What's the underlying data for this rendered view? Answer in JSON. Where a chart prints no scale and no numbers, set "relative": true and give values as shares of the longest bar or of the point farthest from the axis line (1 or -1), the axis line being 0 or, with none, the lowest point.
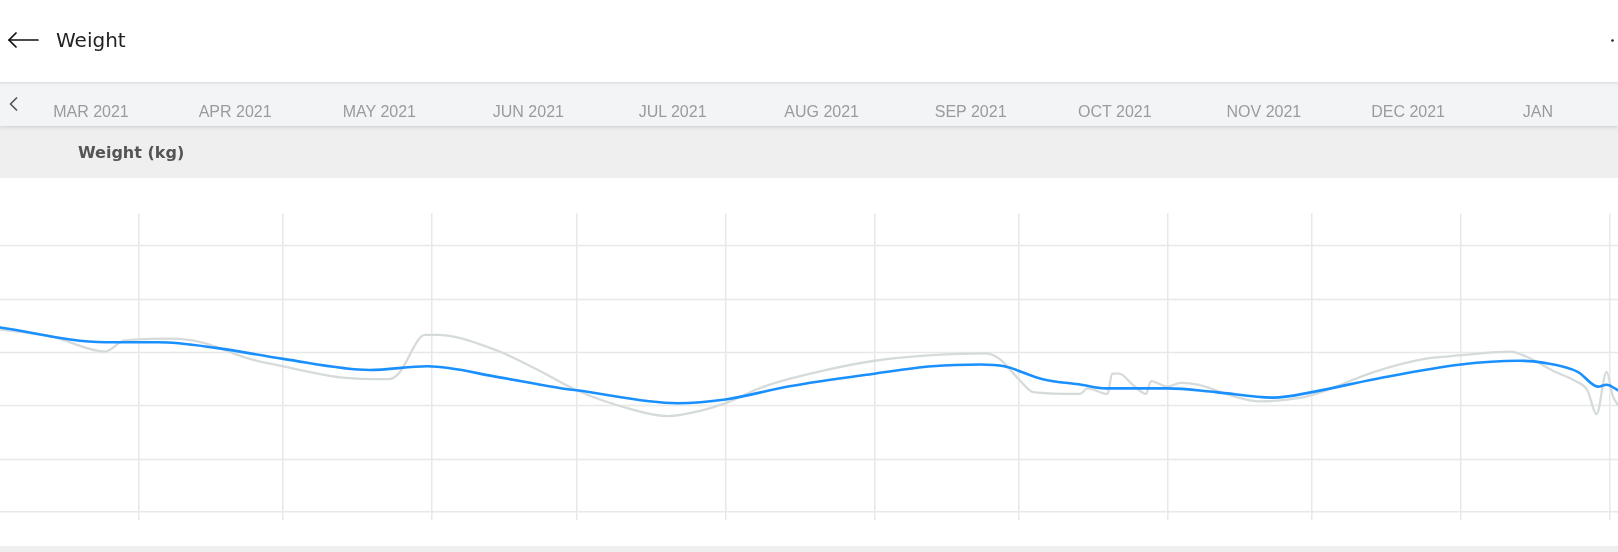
{
  "chart_data": {
    "type": "line",
    "title": "Weight",
    "ylabel": "Weight (kg)",
    "relative": true,
    "grid": true,
    "xlim": [
      "2021-03-03T02:00",
      "2022-02-02T16:00"
    ],
    "xticks": [
      {
        "value": "2021-03-22",
        "label": "MAR 2021"
      },
      {
        "value": "2021-04-01",
        "label": null
      },
      {
        "value": "2021-04-21",
        "label": "APR 2021"
      },
      {
        "value": "2021-05-01",
        "label": null
      },
      {
        "value": "2021-05-21",
        "label": "MAY 2021"
      },
      {
        "value": "2021-06-01",
        "label": null
      },
      {
        "value": "2021-06-21",
        "label": "JUN 2021"
      },
      {
        "value": "2021-07-01",
        "label": null
      },
      {
        "value": "2021-07-21",
        "label": "JUL 2021"
      },
      {
        "value": "2021-08-01",
        "label": null
      },
      {
        "value": "2021-08-21",
        "label": "AUG 2021"
      },
      {
        "value": "2021-09-01",
        "label": null
      },
      {
        "value": "2021-09-21",
        "label": "SEP 2021"
      },
      {
        "value": "2021-10-01",
        "label": null
      },
      {
        "value": "2021-10-21",
        "label": "OCT 2021"
      },
      {
        "value": "2021-11-01",
        "label": null
      },
      {
        "value": "2021-11-21",
        "label": "NOV 2021"
      },
      {
        "value": "2021-12-01",
        "label": null
      },
      {
        "value": "2021-12-21",
        "label": "DEC 2021"
      },
      {
        "value": "2022-01-01",
        "label": null
      },
      {
        "value": "2022-01-17",
        "label": "JAN"
      },
      {
        "value": "2022-02-01",
        "label": null
      }
    ],
    "series": [
      {
        "color": "#d5dadb",
        "x": [
          "2021-03-03T02:00",
          "2021-03-14",
          "2021-03-25",
          "2021-03-29",
          "2021-04-08",
          "2021-04-14",
          "2021-04-24",
          "2021-05-01",
          "2021-05-13",
          "2021-05-23",
          "2021-05-25",
          "2021-05-30T12:00",
          "2021-06-02",
          "2021-06-14",
          "2021-06-23",
          "2021-07-01",
          "2021-07-12",
          "2021-07-20",
          "2021-07-27",
          "2021-08-01",
          "2021-08-09",
          "2021-08-22",
          "2021-09-01",
          "2021-09-13",
          "2021-09-24",
          "2021-09-27",
          "2021-10-01",
          "2021-10-04",
          "2021-10-13T17:00",
          "2021-10-15T07:00",
          "2021-10-19T12:00",
          "2021-10-20T10:00",
          "2021-10-21T22:00",
          "2021-10-24T17:00",
          "2021-10-27T12:00",
          "2021-10-28T12:00",
          "2021-10-31T22:00",
          "2021-11-03T17:00",
          "2021-11-07T07:00",
          "2021-11-14T10:00",
          "2021-11-20",
          "2021-11-28T19:00",
          "2021-12-02T22:00",
          "2021-12-14",
          "2021-12-24T10:00",
          "2022-01-01T05:00",
          "2022-01-11T07:00",
          "2022-01-14T19:00",
          "2022-01-20T14:00",
          "2022-01-24T19:00",
          "2022-01-27T07:00",
          "2022-01-29T05:00",
          "2022-01-31T07:00",
          "2022-02-01T14:00",
          "2022-02-02T16:00"
        ],
        "values": [
          0.99,
          0.95,
          0.87,
          0.93,
          0.94,
          0.92,
          0.83,
          0.79,
          0.73,
          0.72,
          0.75,
          0.96,
          0.96,
          0.88,
          0.77,
          0.66,
          0.56,
          0.52,
          0.55,
          0.59,
          0.68,
          0.77,
          0.82,
          0.85,
          0.86,
          0.83,
          0.72,
          0.65,
          0.64,
          0.67,
          0.64,
          0.75,
          0.75,
          0.69,
          0.64,
          0.71,
          0.68,
          0.7,
          0.69,
          0.63,
          0.6,
          0.62,
          0.65,
          0.76,
          0.83,
          0.85,
          0.87,
          0.84,
          0.76,
          0.71,
          0.66,
          0.53,
          0.76,
          0.63,
          0.58
        ]
      },
      {
        "color": "#1a90ff",
        "x": [
          "2021-03-03T02:00",
          "2021-03-25",
          "2021-04-05",
          "2021-04-17",
          "2021-05-01",
          "2021-05-19",
          "2021-05-31",
          "2021-06-15",
          "2021-06-28",
          "2021-07-01",
          "2021-07-22",
          "2021-08-01",
          "2021-08-14",
          "2021-09-01",
          "2021-09-13",
          "2021-09-23",
          "2021-09-28",
          "2021-10-06",
          "2021-10-14",
          "2021-10-19",
          "2021-10-27",
          "2021-11-01",
          "2021-11-11",
          "2021-11-23",
          "2021-12-01",
          "2021-12-14",
          "2022-01-01",
          "2022-01-13",
          "2022-01-18",
          "2022-01-25T07:00",
          "2022-01-29T12:00",
          "2022-01-31T07:00",
          "2022-02-02T16:00"
        ],
        "values": [
          1.0,
          0.92,
          0.92,
          0.89,
          0.83,
          0.77,
          0.79,
          0.73,
          0.67,
          0.66,
          0.59,
          0.61,
          0.68,
          0.75,
          0.79,
          0.8,
          0.79,
          0.72,
          0.69,
          0.67,
          0.67,
          0.67,
          0.65,
          0.62,
          0.65,
          0.72,
          0.8,
          0.82,
          0.81,
          0.76,
          0.68,
          0.69,
          0.66
        ]
      }
    ]
  }
}
